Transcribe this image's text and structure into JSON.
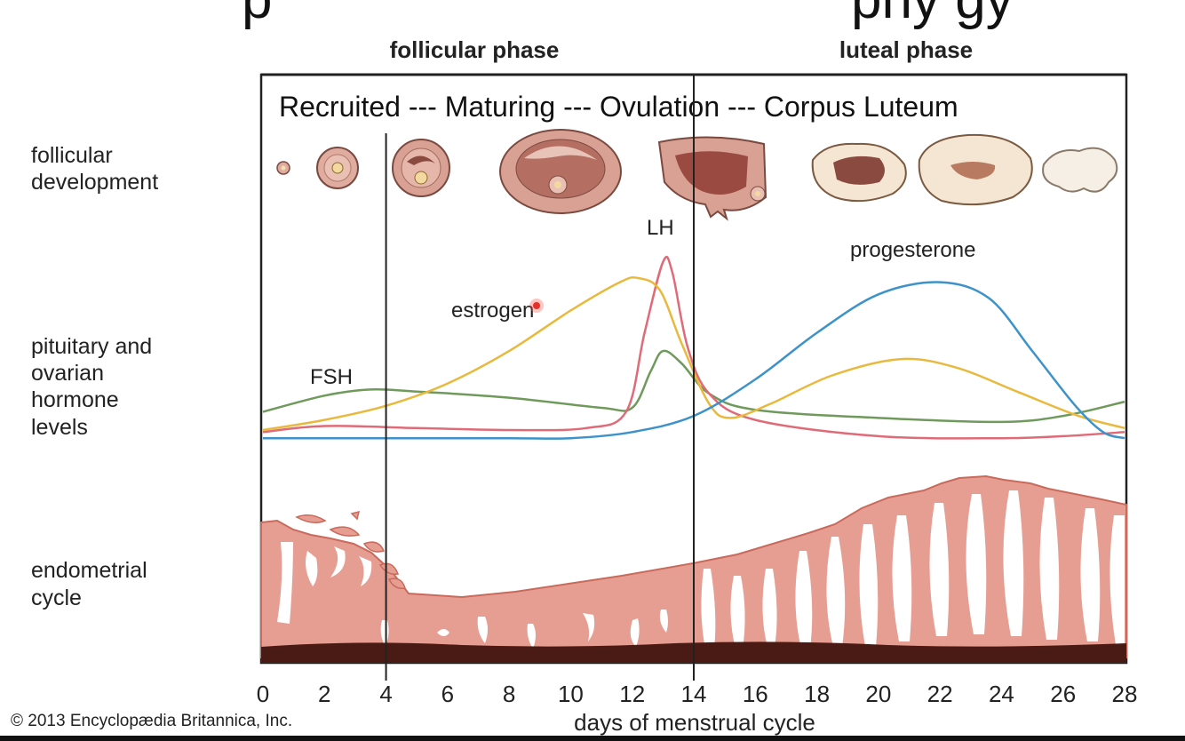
{
  "slide": {
    "title_fragment_left": "p",
    "title_fragment_right": "phy     gy"
  },
  "phases": {
    "follicular": "follicular phase",
    "luteal": "luteal phase"
  },
  "stages_text": "Recruited --- Maturing --- Ovulation --- Corpus Luteum",
  "row_labels": {
    "follicular_development": [
      "follicular",
      "development"
    ],
    "hormone_levels": [
      "pituitary and",
      "ovarian",
      "hormone",
      "levels"
    ],
    "endometrial_cycle": [
      "endometrial",
      "cycle"
    ]
  },
  "copyright": "© 2013 Encyclopædia Britannica, Inc.",
  "colors": {
    "FSH": "#6f9a5c",
    "LH": "#e06b78",
    "estrogen": "#e8b93c",
    "progesterone": "#3d93c9",
    "endometrium": "#e79e92",
    "endometrium_dark": "#c96a5c",
    "endometrium_base": "#4a1a14",
    "follicle_fill": "#d49a8e",
    "corpus_fill": "#f4e6d2"
  },
  "chart_data": {
    "type": "line",
    "xlabel": "days of menstrual cycle",
    "xlim": [
      0,
      28
    ],
    "ylim": [
      0,
      100
    ],
    "x_ticks": [
      "0",
      "2",
      "4",
      "6",
      "8",
      "10",
      "12",
      "14",
      "16",
      "18",
      "20",
      "22",
      "24",
      "26",
      "28"
    ],
    "phase_dividers_x": [
      4,
      14
    ],
    "series": [
      {
        "name": "FSH",
        "points": [
          [
            0,
            16
          ],
          [
            2,
            24
          ],
          [
            3.5,
            27
          ],
          [
            5,
            26
          ],
          [
            8,
            23
          ],
          [
            11,
            18
          ],
          [
            12,
            18
          ],
          [
            12.6,
            36
          ],
          [
            13,
            46
          ],
          [
            13.6,
            40
          ],
          [
            14.5,
            25
          ],
          [
            16,
            17
          ],
          [
            20,
            13
          ],
          [
            24,
            11
          ],
          [
            26,
            14
          ],
          [
            28,
            21
          ]
        ]
      },
      {
        "name": "LH",
        "points": [
          [
            0,
            6
          ],
          [
            2,
            9
          ],
          [
            5,
            8
          ],
          [
            8,
            7
          ],
          [
            10.5,
            8
          ],
          [
            11.8,
            16
          ],
          [
            12.4,
            55
          ],
          [
            13,
            90
          ],
          [
            13.3,
            85
          ],
          [
            13.8,
            48
          ],
          [
            14.5,
            25
          ],
          [
            16,
            12
          ],
          [
            20,
            4
          ],
          [
            24,
            3
          ],
          [
            26,
            4
          ],
          [
            28,
            6
          ]
        ]
      },
      {
        "name": "estrogen",
        "points": [
          [
            0,
            7
          ],
          [
            2,
            12
          ],
          [
            4,
            19
          ],
          [
            6,
            30
          ],
          [
            8,
            46
          ],
          [
            10,
            66
          ],
          [
            11.6,
            80
          ],
          [
            12.2,
            82
          ],
          [
            12.9,
            76
          ],
          [
            13.6,
            50
          ],
          [
            14.5,
            20
          ],
          [
            15.2,
            13
          ],
          [
            16.5,
            20
          ],
          [
            18.5,
            34
          ],
          [
            20.7,
            42
          ],
          [
            22.5,
            38
          ],
          [
            24.5,
            26
          ],
          [
            26.5,
            14
          ],
          [
            28,
            8
          ]
        ]
      },
      {
        "name": "progesterone",
        "points": [
          [
            0,
            3
          ],
          [
            4,
            3
          ],
          [
            8,
            3
          ],
          [
            10,
            3
          ],
          [
            12,
            6
          ],
          [
            14,
            14
          ],
          [
            16,
            32
          ],
          [
            18,
            55
          ],
          [
            20,
            74
          ],
          [
            22,
            80
          ],
          [
            23.6,
            72
          ],
          [
            25,
            46
          ],
          [
            26.4,
            19
          ],
          [
            27.3,
            6
          ],
          [
            28,
            3
          ]
        ]
      }
    ]
  }
}
